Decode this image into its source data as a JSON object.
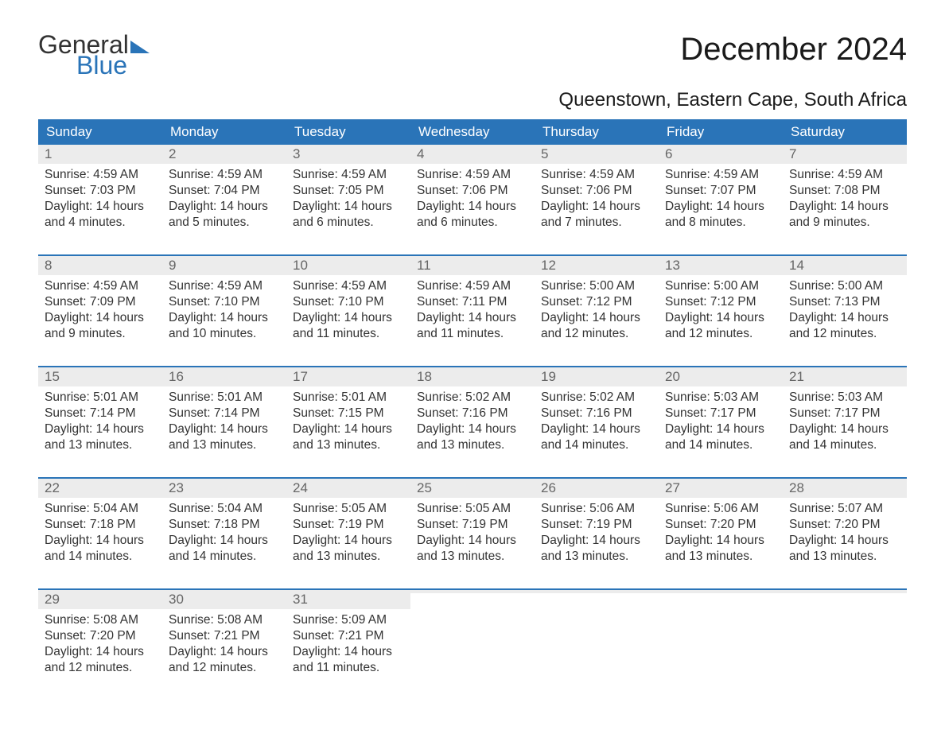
{
  "brand": {
    "part1": "General",
    "part2": "Blue"
  },
  "title": "December 2024",
  "location": "Queenstown, Eastern Cape, South Africa",
  "colors": {
    "header_bg": "#2a74b8",
    "header_text": "#ffffff",
    "daynum_bg": "#ececec",
    "daynum_text": "#666666",
    "body_text": "#333333",
    "week_border": "#2a74b8",
    "page_bg": "#ffffff"
  },
  "font": {
    "family": "Arial",
    "dayname_size_pt": 13,
    "body_size_pt": 12,
    "title_size_pt": 30,
    "location_size_pt": 18
  },
  "day_names": [
    "Sunday",
    "Monday",
    "Tuesday",
    "Wednesday",
    "Thursday",
    "Friday",
    "Saturday"
  ],
  "weeks": [
    [
      {
        "num": "1",
        "sunrise": "Sunrise: 4:59 AM",
        "sunset": "Sunset: 7:03 PM",
        "dl1": "Daylight: 14 hours",
        "dl2": "and 4 minutes."
      },
      {
        "num": "2",
        "sunrise": "Sunrise: 4:59 AM",
        "sunset": "Sunset: 7:04 PM",
        "dl1": "Daylight: 14 hours",
        "dl2": "and 5 minutes."
      },
      {
        "num": "3",
        "sunrise": "Sunrise: 4:59 AM",
        "sunset": "Sunset: 7:05 PM",
        "dl1": "Daylight: 14 hours",
        "dl2": "and 6 minutes."
      },
      {
        "num": "4",
        "sunrise": "Sunrise: 4:59 AM",
        "sunset": "Sunset: 7:06 PM",
        "dl1": "Daylight: 14 hours",
        "dl2": "and 6 minutes."
      },
      {
        "num": "5",
        "sunrise": "Sunrise: 4:59 AM",
        "sunset": "Sunset: 7:06 PM",
        "dl1": "Daylight: 14 hours",
        "dl2": "and 7 minutes."
      },
      {
        "num": "6",
        "sunrise": "Sunrise: 4:59 AM",
        "sunset": "Sunset: 7:07 PM",
        "dl1": "Daylight: 14 hours",
        "dl2": "and 8 minutes."
      },
      {
        "num": "7",
        "sunrise": "Sunrise: 4:59 AM",
        "sunset": "Sunset: 7:08 PM",
        "dl1": "Daylight: 14 hours",
        "dl2": "and 9 minutes."
      }
    ],
    [
      {
        "num": "8",
        "sunrise": "Sunrise: 4:59 AM",
        "sunset": "Sunset: 7:09 PM",
        "dl1": "Daylight: 14 hours",
        "dl2": "and 9 minutes."
      },
      {
        "num": "9",
        "sunrise": "Sunrise: 4:59 AM",
        "sunset": "Sunset: 7:10 PM",
        "dl1": "Daylight: 14 hours",
        "dl2": "and 10 minutes."
      },
      {
        "num": "10",
        "sunrise": "Sunrise: 4:59 AM",
        "sunset": "Sunset: 7:10 PM",
        "dl1": "Daylight: 14 hours",
        "dl2": "and 11 minutes."
      },
      {
        "num": "11",
        "sunrise": "Sunrise: 4:59 AM",
        "sunset": "Sunset: 7:11 PM",
        "dl1": "Daylight: 14 hours",
        "dl2": "and 11 minutes."
      },
      {
        "num": "12",
        "sunrise": "Sunrise: 5:00 AM",
        "sunset": "Sunset: 7:12 PM",
        "dl1": "Daylight: 14 hours",
        "dl2": "and 12 minutes."
      },
      {
        "num": "13",
        "sunrise": "Sunrise: 5:00 AM",
        "sunset": "Sunset: 7:12 PM",
        "dl1": "Daylight: 14 hours",
        "dl2": "and 12 minutes."
      },
      {
        "num": "14",
        "sunrise": "Sunrise: 5:00 AM",
        "sunset": "Sunset: 7:13 PM",
        "dl1": "Daylight: 14 hours",
        "dl2": "and 12 minutes."
      }
    ],
    [
      {
        "num": "15",
        "sunrise": "Sunrise: 5:01 AM",
        "sunset": "Sunset: 7:14 PM",
        "dl1": "Daylight: 14 hours",
        "dl2": "and 13 minutes."
      },
      {
        "num": "16",
        "sunrise": "Sunrise: 5:01 AM",
        "sunset": "Sunset: 7:14 PM",
        "dl1": "Daylight: 14 hours",
        "dl2": "and 13 minutes."
      },
      {
        "num": "17",
        "sunrise": "Sunrise: 5:01 AM",
        "sunset": "Sunset: 7:15 PM",
        "dl1": "Daylight: 14 hours",
        "dl2": "and 13 minutes."
      },
      {
        "num": "18",
        "sunrise": "Sunrise: 5:02 AM",
        "sunset": "Sunset: 7:16 PM",
        "dl1": "Daylight: 14 hours",
        "dl2": "and 13 minutes."
      },
      {
        "num": "19",
        "sunrise": "Sunrise: 5:02 AM",
        "sunset": "Sunset: 7:16 PM",
        "dl1": "Daylight: 14 hours",
        "dl2": "and 14 minutes."
      },
      {
        "num": "20",
        "sunrise": "Sunrise: 5:03 AM",
        "sunset": "Sunset: 7:17 PM",
        "dl1": "Daylight: 14 hours",
        "dl2": "and 14 minutes."
      },
      {
        "num": "21",
        "sunrise": "Sunrise: 5:03 AM",
        "sunset": "Sunset: 7:17 PM",
        "dl1": "Daylight: 14 hours",
        "dl2": "and 14 minutes."
      }
    ],
    [
      {
        "num": "22",
        "sunrise": "Sunrise: 5:04 AM",
        "sunset": "Sunset: 7:18 PM",
        "dl1": "Daylight: 14 hours",
        "dl2": "and 14 minutes."
      },
      {
        "num": "23",
        "sunrise": "Sunrise: 5:04 AM",
        "sunset": "Sunset: 7:18 PM",
        "dl1": "Daylight: 14 hours",
        "dl2": "and 14 minutes."
      },
      {
        "num": "24",
        "sunrise": "Sunrise: 5:05 AM",
        "sunset": "Sunset: 7:19 PM",
        "dl1": "Daylight: 14 hours",
        "dl2": "and 13 minutes."
      },
      {
        "num": "25",
        "sunrise": "Sunrise: 5:05 AM",
        "sunset": "Sunset: 7:19 PM",
        "dl1": "Daylight: 14 hours",
        "dl2": "and 13 minutes."
      },
      {
        "num": "26",
        "sunrise": "Sunrise: 5:06 AM",
        "sunset": "Sunset: 7:19 PM",
        "dl1": "Daylight: 14 hours",
        "dl2": "and 13 minutes."
      },
      {
        "num": "27",
        "sunrise": "Sunrise: 5:06 AM",
        "sunset": "Sunset: 7:20 PM",
        "dl1": "Daylight: 14 hours",
        "dl2": "and 13 minutes."
      },
      {
        "num": "28",
        "sunrise": "Sunrise: 5:07 AM",
        "sunset": "Sunset: 7:20 PM",
        "dl1": "Daylight: 14 hours",
        "dl2": "and 13 minutes."
      }
    ],
    [
      {
        "num": "29",
        "sunrise": "Sunrise: 5:08 AM",
        "sunset": "Sunset: 7:20 PM",
        "dl1": "Daylight: 14 hours",
        "dl2": "and 12 minutes."
      },
      {
        "num": "30",
        "sunrise": "Sunrise: 5:08 AM",
        "sunset": "Sunset: 7:21 PM",
        "dl1": "Daylight: 14 hours",
        "dl2": "and 12 minutes."
      },
      {
        "num": "31",
        "sunrise": "Sunrise: 5:09 AM",
        "sunset": "Sunset: 7:21 PM",
        "dl1": "Daylight: 14 hours",
        "dl2": "and 11 minutes."
      },
      {
        "empty": true
      },
      {
        "empty": true
      },
      {
        "empty": true
      },
      {
        "empty": true
      }
    ]
  ]
}
